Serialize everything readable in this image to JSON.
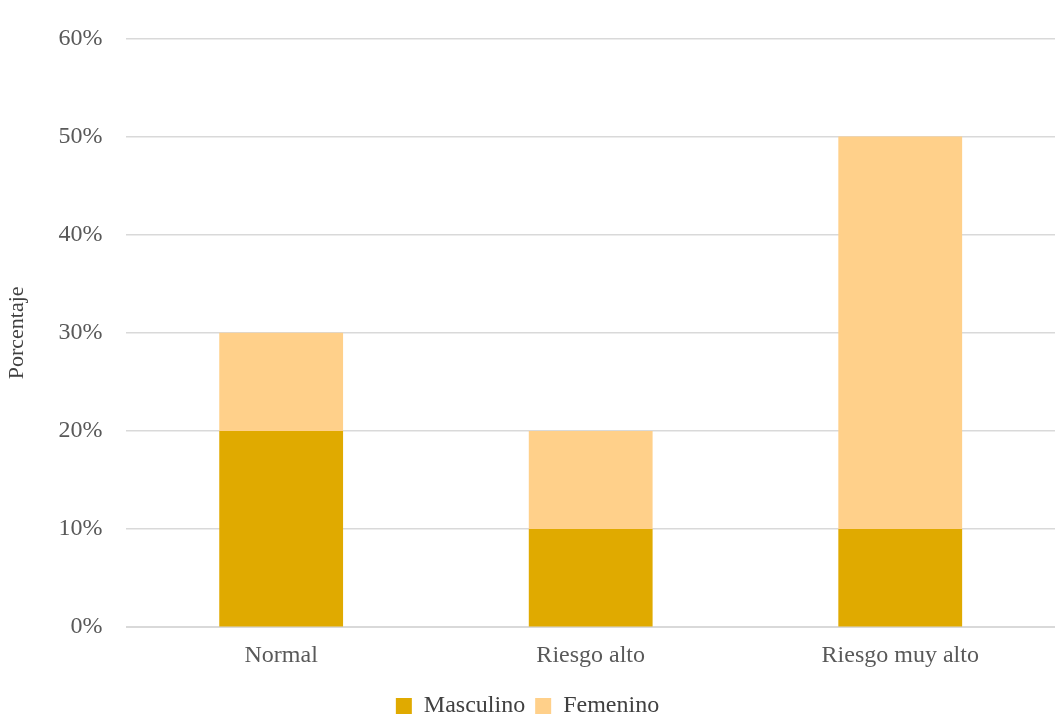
{
  "chart_data": {
    "type": "bar",
    "stacked": true,
    "ylabel": "Porcentaje",
    "categories": [
      "Normal",
      "Riesgo alto",
      "Riesgo muy alto"
    ],
    "series": [
      {
        "name": "Masculino",
        "color": "#e0aa00",
        "values": [
          20,
          10,
          10
        ]
      },
      {
        "name": "Femenino",
        "color": "#ffd08a",
        "values": [
          10,
          10,
          40
        ]
      }
    ],
    "ylim": [
      0,
      60
    ],
    "yticks": [
      {
        "value": 0,
        "label": "0%"
      },
      {
        "value": 10,
        "label": "10%"
      },
      {
        "value": 20,
        "label": "20%"
      },
      {
        "value": 30,
        "label": "30%"
      },
      {
        "value": 40,
        "label": "40%"
      },
      {
        "value": 50,
        "label": "50%"
      },
      {
        "value": 60,
        "label": "60%"
      }
    ],
    "grid": "y",
    "legend": "bottom"
  }
}
